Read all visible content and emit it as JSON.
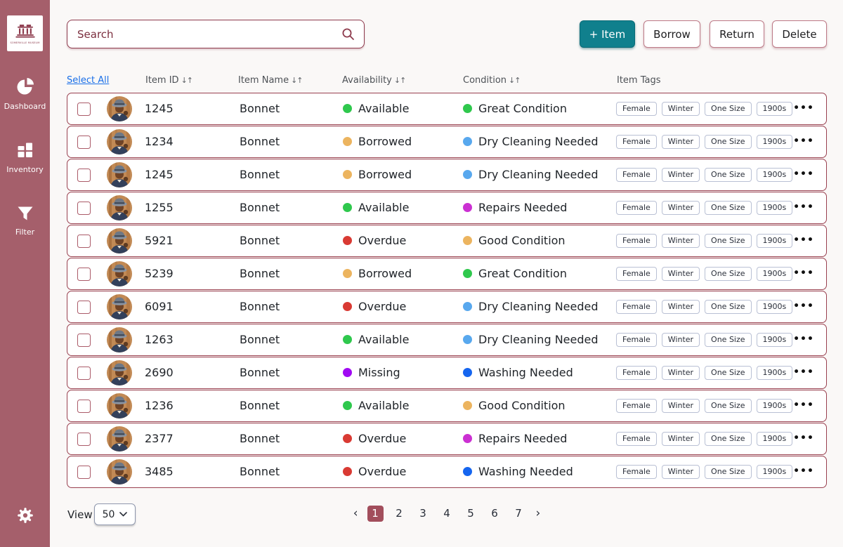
{
  "app": {
    "logo_text": "SOMERVILLE MUSEUM"
  },
  "sidebar": {
    "items": [
      {
        "label": "Dashboard",
        "icon": "pie-chart-icon"
      },
      {
        "label": "Inventory",
        "icon": "grid-icon"
      },
      {
        "label": "Filter",
        "icon": "funnel-icon"
      }
    ],
    "settings_icon": "gear-icon"
  },
  "toolbar": {
    "search_placeholder": "Search",
    "add_item_label": "+ Item",
    "borrow_label": "Borrow",
    "return_label": "Return",
    "delete_label": "Delete"
  },
  "table": {
    "select_all_label": "Select All",
    "columns": [
      {
        "label": "Item ID",
        "sortable": true
      },
      {
        "label": "Item Name",
        "sortable": true
      },
      {
        "label": "Availability",
        "sortable": true
      },
      {
        "label": "Condition",
        "sortable": true
      },
      {
        "label": "Item Tags",
        "sortable": false
      }
    ],
    "rows": [
      {
        "id": "1245",
        "name": "Bonnet",
        "availability": {
          "label": "Available",
          "color": "#2fc84d"
        },
        "condition": {
          "label": "Great Condition",
          "color": "#2fc84d"
        },
        "tags": [
          "Female",
          "Winter",
          "One Size",
          "1900s"
        ]
      },
      {
        "id": "1234",
        "name": "Bonnet",
        "availability": {
          "label": "Borrowed",
          "color": "#ecb45f"
        },
        "condition": {
          "label": "Dry Cleaning Needed",
          "color": "#58a8ee"
        },
        "tags": [
          "Female",
          "Winter",
          "One Size",
          "1900s"
        ]
      },
      {
        "id": "1245",
        "name": "Bonnet",
        "availability": {
          "label": "Borrowed",
          "color": "#ecb45f"
        },
        "condition": {
          "label": "Dry Cleaning Needed",
          "color": "#58a8ee"
        },
        "tags": [
          "Female",
          "Winter",
          "One Size",
          "1900s"
        ]
      },
      {
        "id": "1255",
        "name": "Bonnet",
        "availability": {
          "label": "Available",
          "color": "#2fc84d"
        },
        "condition": {
          "label": "Repairs Needed",
          "color": "#cb30d2"
        },
        "tags": [
          "Female",
          "Winter",
          "One Size",
          "1900s"
        ]
      },
      {
        "id": "5921",
        "name": "Bonnet",
        "availability": {
          "label": "Overdue",
          "color": "#d93a33"
        },
        "condition": {
          "label": "Good Condition",
          "color": "#ecb45f"
        },
        "tags": [
          "Female",
          "Winter",
          "One Size",
          "1900s"
        ]
      },
      {
        "id": "5239",
        "name": "Bonnet",
        "availability": {
          "label": "Borrowed",
          "color": "#ecb45f"
        },
        "condition": {
          "label": "Great Condition",
          "color": "#2fc84d"
        },
        "tags": [
          "Female",
          "Winter",
          "One Size",
          "1900s"
        ]
      },
      {
        "id": "6091",
        "name": "Bonnet",
        "availability": {
          "label": "Overdue",
          "color": "#d93a33"
        },
        "condition": {
          "label": "Dry Cleaning Needed",
          "color": "#58a8ee"
        },
        "tags": [
          "Female",
          "Winter",
          "One Size",
          "1900s"
        ]
      },
      {
        "id": "1263",
        "name": "Bonnet",
        "availability": {
          "label": "Available",
          "color": "#2fc84d"
        },
        "condition": {
          "label": "Dry Cleaning Needed",
          "color": "#58a8ee"
        },
        "tags": [
          "Female",
          "Winter",
          "One Size",
          "1900s"
        ]
      },
      {
        "id": "2690",
        "name": "Bonnet",
        "availability": {
          "label": "Missing",
          "color": "#a009f2"
        },
        "condition": {
          "label": "Washing Needed",
          "color": "#1565ef"
        },
        "tags": [
          "Female",
          "Winter",
          "One Size",
          "1900s"
        ]
      },
      {
        "id": "1236",
        "name": "Bonnet",
        "availability": {
          "label": "Available",
          "color": "#2fc84d"
        },
        "condition": {
          "label": "Good Condition",
          "color": "#ecb45f"
        },
        "tags": [
          "Female",
          "Winter",
          "One Size",
          "1900s"
        ]
      },
      {
        "id": "2377",
        "name": "Bonnet",
        "availability": {
          "label": "Overdue",
          "color": "#d93a33"
        },
        "condition": {
          "label": "Repairs Needed",
          "color": "#cb30d2"
        },
        "tags": [
          "Female",
          "Winter",
          "One Size",
          "1900s"
        ]
      },
      {
        "id": "3485",
        "name": "Bonnet",
        "availability": {
          "label": "Overdue",
          "color": "#d93a33"
        },
        "condition": {
          "label": "Washing Needed",
          "color": "#1565ef"
        },
        "tags": [
          "Female",
          "Winter",
          "One Size",
          "1900s"
        ]
      }
    ]
  },
  "footer": {
    "view_label": "View",
    "page_size": "50",
    "pages": [
      "1",
      "2",
      "3",
      "4",
      "5",
      "6",
      "7"
    ],
    "active_page": "1"
  },
  "icons": {
    "sort": "↓↑",
    "ellipsis": "•••",
    "prev": "‹",
    "next": "›"
  },
  "colors": {
    "sidebar": "#a55f6b",
    "accent_maroon": "#99404f",
    "teal": "#10808d",
    "link_blue": "#1a6fe8",
    "pagination_active": "#a24e5c",
    "status": {
      "available": "#2fc84d",
      "borrowed": "#ecb45f",
      "overdue": "#d93a33",
      "missing": "#a009f2",
      "great_condition": "#2fc84d",
      "good_condition": "#ecb45f",
      "dry_cleaning_needed": "#58a8ee",
      "repairs_needed": "#cb30d2",
      "washing_needed": "#1565ef"
    }
  }
}
